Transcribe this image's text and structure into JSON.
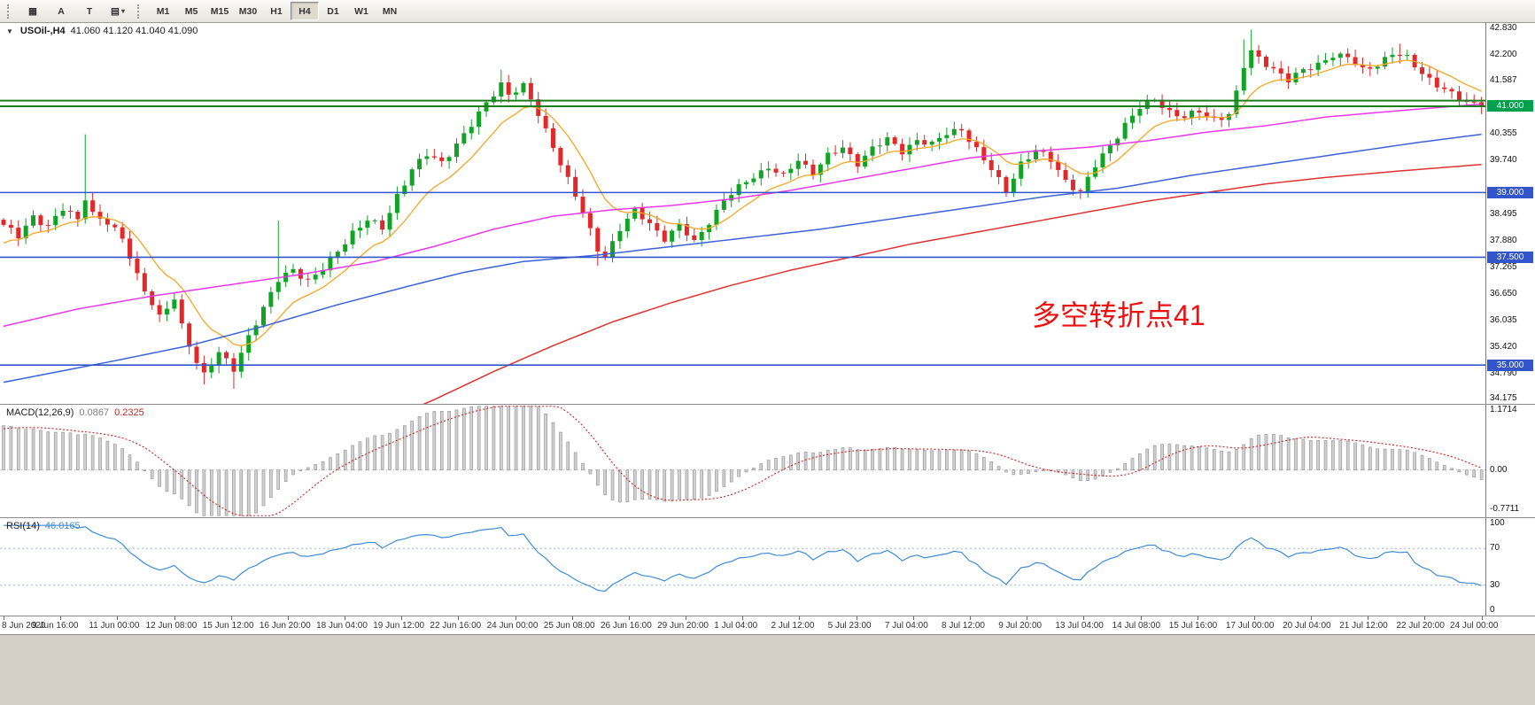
{
  "toolbar": {
    "tools": [
      {
        "name": "chart-window-tool",
        "label": "▦"
      },
      {
        "name": "arrow-tool",
        "label": "A"
      },
      {
        "name": "text-tool",
        "label": "T"
      },
      {
        "name": "indicators-tool",
        "label": "▤",
        "caret": "▾"
      }
    ],
    "timeframes": [
      "M1",
      "M5",
      "M15",
      "M30",
      "H1",
      "H4",
      "D1",
      "W1",
      "MN"
    ],
    "active_timeframe": "H4"
  },
  "main_chart": {
    "title": "USOil-,H4",
    "ohlc_text": "41.060 41.120 41.040 41.090",
    "annotation": "多空转折点41"
  },
  "macd_header": {
    "label": "MACD(12,26,9)",
    "main_value": "0.0867",
    "signal_value": "0.2325"
  },
  "rsi_header": {
    "label": "RSI(14)",
    "value": "46.0165"
  },
  "chart_data": {
    "type": "candlestick",
    "symbol": "USOil-",
    "timeframe": "H4",
    "last_ohlc": {
      "open": 41.06,
      "high": 41.12,
      "low": 41.04,
      "close": 41.09
    },
    "colors": {
      "up": "#10a324",
      "down": "#e22828",
      "ma_fast": "#f5a623",
      "ma_medium": "#e838e8",
      "ma_slow": "#3b62d9",
      "ma_slowest": "#e03131",
      "level_blue": "#3355cc",
      "level_green": "#1b7f1f",
      "price_badge_green": "#00a14d",
      "macd_bar_fill": "#d0d0d0",
      "macd_bar_stroke": "#8f8f8f",
      "macd_signal": "#d02020",
      "rsi_line": "#3f8cd6",
      "rsi_level": "#9fb6cc"
    },
    "price_axis": {
      "max": 42.93,
      "min": 34.1,
      "ticks": [
        {
          "t": "42.830",
          "v": 42.83
        },
        {
          "t": "42.200",
          "v": 42.2
        },
        {
          "t": "41.587",
          "v": 41.587
        },
        {
          "t": "40.355",
          "v": 40.355
        },
        {
          "t": "39.740",
          "v": 39.74
        },
        {
          "t": "38.495",
          "v": 38.495
        },
        {
          "t": "37.880",
          "v": 37.88
        },
        {
          "t": "37.265",
          "v": 37.265
        },
        {
          "t": "36.650",
          "v": 36.65
        },
        {
          "t": "36.035",
          "v": 36.035
        },
        {
          "t": "35.420",
          "v": 35.42
        },
        {
          "t": "34.790",
          "v": 34.79
        },
        {
          "t": "34.175",
          "v": 34.175
        }
      ],
      "badges": [
        {
          "t": "41.000",
          "v": 41.0,
          "bg": "#00a14d"
        },
        {
          "t": "39.000",
          "v": 39.0,
          "bg": "#3355cc"
        },
        {
          "t": "37.500",
          "v": 37.5,
          "bg": "#3355cc"
        },
        {
          "t": "35.000",
          "v": 35.0,
          "bg": "#3355cc"
        }
      ]
    },
    "level_lines": [
      {
        "v": 41.13,
        "color": "#1b7f1f",
        "w": 2
      },
      {
        "v": 41.0,
        "color": "#1b7f1f",
        "w": 2
      },
      {
        "v": 39.0,
        "color": "#3355cc",
        "w": 1.6
      },
      {
        "v": 37.5,
        "color": "#3355cc",
        "w": 1.6
      },
      {
        "v": 35.0,
        "color": "#3355cc",
        "w": 1.6
      }
    ],
    "candle_count": 200,
    "prebars": {
      "count": 30,
      "from": 35.2,
      "to": 38.2
    },
    "close_path": [
      [
        0,
        38.25
      ],
      [
        2,
        37.95
      ],
      [
        4,
        38.45
      ],
      [
        6,
        38.25
      ],
      [
        8,
        38.6
      ],
      [
        10,
        38.35
      ],
      [
        11,
        38.9
      ],
      [
        12,
        38.55
      ],
      [
        14,
        38.3
      ],
      [
        16,
        37.9
      ],
      [
        18,
        37.1
      ],
      [
        20,
        36.45
      ],
      [
        21,
        36.1
      ],
      [
        23,
        36.5
      ],
      [
        24,
        35.9
      ],
      [
        26,
        35.1
      ],
      [
        27,
        34.8
      ],
      [
        29,
        35.25
      ],
      [
        31,
        34.9
      ],
      [
        33,
        35.7
      ],
      [
        35,
        36.3
      ],
      [
        37,
        36.95
      ],
      [
        39,
        37.25
      ],
      [
        41,
        36.95
      ],
      [
        43,
        37.2
      ],
      [
        45,
        37.65
      ],
      [
        47,
        38.1
      ],
      [
        49,
        38.35
      ],
      [
        51,
        38.15
      ],
      [
        53,
        38.95
      ],
      [
        55,
        39.55
      ],
      [
        57,
        39.85
      ],
      [
        59,
        39.7
      ],
      [
        61,
        40.15
      ],
      [
        63,
        40.55
      ],
      [
        65,
        41.05
      ],
      [
        67,
        41.55
      ],
      [
        68,
        41.3
      ],
      [
        70,
        41.45
      ],
      [
        72,
        40.8
      ],
      [
        74,
        40.1
      ],
      [
        76,
        39.3
      ],
      [
        78,
        38.5
      ],
      [
        80,
        37.7
      ],
      [
        81,
        37.55
      ],
      [
        83,
        38.15
      ],
      [
        85,
        38.55
      ],
      [
        87,
        38.3
      ],
      [
        89,
        37.95
      ],
      [
        91,
        38.2
      ],
      [
        93,
        37.85
      ],
      [
        95,
        38.35
      ],
      [
        97,
        38.8
      ],
      [
        99,
        39.1
      ],
      [
        101,
        39.4
      ],
      [
        103,
        39.6
      ],
      [
        105,
        39.35
      ],
      [
        107,
        39.75
      ],
      [
        109,
        39.5
      ],
      [
        111,
        39.85
      ],
      [
        113,
        40.0
      ],
      [
        115,
        39.7
      ],
      [
        117,
        40.05
      ],
      [
        119,
        40.2
      ],
      [
        121,
        39.95
      ],
      [
        123,
        40.25
      ],
      [
        125,
        40.1
      ],
      [
        127,
        40.35
      ],
      [
        129,
        40.5
      ],
      [
        131,
        40.0
      ],
      [
        133,
        39.5
      ],
      [
        135,
        39.05
      ],
      [
        137,
        39.7
      ],
      [
        139,
        39.95
      ],
      [
        141,
        39.75
      ],
      [
        143,
        39.3
      ],
      [
        145,
        39.0
      ],
      [
        147,
        39.6
      ],
      [
        149,
        40.1
      ],
      [
        151,
        40.6
      ],
      [
        153,
        40.95
      ],
      [
        155,
        41.15
      ],
      [
        157,
        40.9
      ],
      [
        159,
        40.75
      ],
      [
        161,
        40.85
      ],
      [
        163,
        40.7
      ],
      [
        165,
        40.85
      ],
      [
        166,
        41.3
      ],
      [
        167,
        41.9
      ],
      [
        168,
        42.25
      ],
      [
        169,
        42.1
      ],
      [
        171,
        41.9
      ],
      [
        173,
        41.6
      ],
      [
        175,
        41.8
      ],
      [
        177,
        42.0
      ],
      [
        179,
        42.2
      ],
      [
        181,
        42.1
      ],
      [
        183,
        41.85
      ],
      [
        185,
        42.0
      ],
      [
        187,
        42.2
      ],
      [
        189,
        42.1
      ],
      [
        191,
        41.8
      ],
      [
        193,
        41.5
      ],
      [
        195,
        41.25
      ],
      [
        197,
        41.1
      ],
      [
        199,
        41.09
      ]
    ],
    "spikes": [
      {
        "i": 11,
        "high": 40.35
      },
      {
        "i": 27,
        "low": 34.55
      },
      {
        "i": 31,
        "low": 34.45
      },
      {
        "i": 37,
        "high": 38.35
      },
      {
        "i": 67,
        "high": 41.85
      },
      {
        "i": 80,
        "low": 37.3
      },
      {
        "i": 145,
        "low": 38.85
      },
      {
        "i": 167,
        "high": 42.55
      },
      {
        "i": 168,
        "high": 42.78
      },
      {
        "i": 188,
        "high": 42.45
      }
    ],
    "moving_averages": [
      {
        "name": "fast",
        "color": "#f5a623",
        "type": "ema",
        "period": 10,
        "width": 1.3
      },
      {
        "name": "medium",
        "color": "#e838e8",
        "width": 1.5,
        "path": [
          [
            0,
            35.9
          ],
          [
            10,
            36.3
          ],
          [
            20,
            36.6
          ],
          [
            30,
            36.85
          ],
          [
            40,
            37.1
          ],
          [
            50,
            37.4
          ],
          [
            58,
            37.75
          ],
          [
            66,
            38.15
          ],
          [
            74,
            38.45
          ],
          [
            82,
            38.6
          ],
          [
            90,
            38.7
          ],
          [
            98,
            38.85
          ],
          [
            106,
            39.05
          ],
          [
            114,
            39.3
          ],
          [
            122,
            39.55
          ],
          [
            130,
            39.8
          ],
          [
            138,
            39.95
          ],
          [
            146,
            40.05
          ],
          [
            154,
            40.2
          ],
          [
            162,
            40.4
          ],
          [
            170,
            40.55
          ],
          [
            178,
            40.75
          ],
          [
            188,
            40.9
          ],
          [
            199,
            41.05
          ]
        ]
      },
      {
        "name": "slow",
        "color": "#3b62d9",
        "width": 1.5,
        "path": [
          [
            0,
            34.6
          ],
          [
            15,
            35.1
          ],
          [
            25,
            35.45
          ],
          [
            35,
            35.9
          ],
          [
            45,
            36.4
          ],
          [
            55,
            36.85
          ],
          [
            62,
            37.15
          ],
          [
            70,
            37.4
          ],
          [
            80,
            37.55
          ],
          [
            90,
            37.75
          ],
          [
            100,
            37.95
          ],
          [
            110,
            38.15
          ],
          [
            120,
            38.4
          ],
          [
            130,
            38.65
          ],
          [
            140,
            38.9
          ],
          [
            150,
            39.1
          ],
          [
            160,
            39.4
          ],
          [
            170,
            39.65
          ],
          [
            180,
            39.9
          ],
          [
            190,
            40.15
          ],
          [
            199,
            40.35
          ]
        ]
      },
      {
        "name": "slowest",
        "color": "#e03131",
        "width": 1.5,
        "path": [
          [
            50,
            33.6
          ],
          [
            58,
            34.2
          ],
          [
            66,
            34.85
          ],
          [
            74,
            35.45
          ],
          [
            82,
            36.0
          ],
          [
            90,
            36.45
          ],
          [
            98,
            36.85
          ],
          [
            106,
            37.2
          ],
          [
            114,
            37.5
          ],
          [
            122,
            37.8
          ],
          [
            130,
            38.05
          ],
          [
            138,
            38.3
          ],
          [
            146,
            38.55
          ],
          [
            154,
            38.8
          ],
          [
            162,
            39.0
          ],
          [
            170,
            39.2
          ],
          [
            178,
            39.35
          ],
          [
            188,
            39.5
          ],
          [
            199,
            39.65
          ]
        ]
      }
    ],
    "macd": {
      "label": "MACD(12,26,9)",
      "main_value": 0.0867,
      "signal_value": 0.2325,
      "plot_max": 1.27,
      "plot_min": -0.92,
      "axis": [
        {
          "t": "1.1714",
          "v": 1.1714
        },
        {
          "t": "0.00",
          "v": 0
        },
        {
          "t": "-0.7711",
          "v": -0.7711
        }
      ]
    },
    "rsi": {
      "label": "RSI(14)",
      "value": 46.0165,
      "period": 14,
      "levels": [
        70,
        30
      ],
      "axis": [
        {
          "t": "100",
          "v": 100
        },
        {
          "t": "70",
          "v": 70
        },
        {
          "t": "30",
          "v": 30
        },
        {
          "t": "0",
          "v": 0
        }
      ]
    },
    "time_labels": [
      "8 Jun 2020",
      "9 Jun 16:00",
      "11 Jun 00:00",
      "12 Jun 08:00",
      "15 Jun 12:00",
      "16 Jun 20:00",
      "18 Jun 04:00",
      "19 Jun 12:00",
      "22 Jun 16:00",
      "24 Jun 00:00",
      "25 Jun 08:00",
      "26 Jun 16:00",
      "29 Jun 20:00",
      "1 Jul 04:00",
      "2 Jul 12:00",
      "5 Jul 23:00",
      "7 Jul 04:00",
      "8 Jul 12:00",
      "9 Jul 20:00",
      "13 Jul 04:00",
      "14 Jul 08:00",
      "15 Jul 16:00",
      "17 Jul 00:00",
      "20 Jul 04:00",
      "21 Jul 12:00",
      "22 Jul 20:00",
      "24 Jul 00:00"
    ]
  }
}
